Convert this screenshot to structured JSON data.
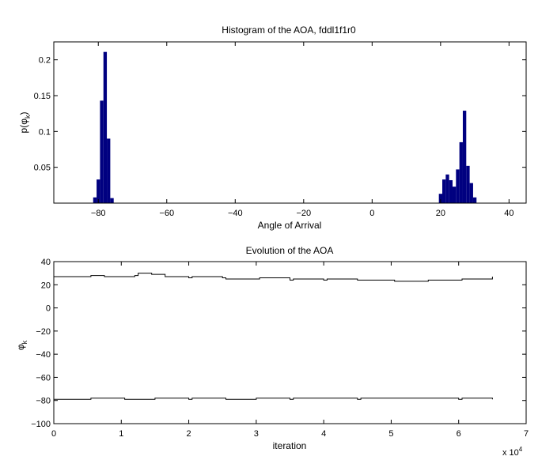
{
  "figure": {
    "background": "#ffffff"
  },
  "chart_data": [
    {
      "type": "bar",
      "title": "Histogram of the AOA, fddl1f1r0",
      "xlabel": "Angle of Arrival",
      "ylabel": "p(φ_k)",
      "ylabel_base": "p(φ",
      "ylabel_sub": "k",
      "ylabel_end": ")",
      "xlim": [
        -93,
        45
      ],
      "ylim": [
        0,
        0.225
      ],
      "xticks": [
        -80,
        -60,
        -40,
        -20,
        0,
        20,
        40
      ],
      "yticks": [
        0.05,
        0.1,
        0.15,
        0.2
      ],
      "xtick_labels": [
        "−80",
        "−60",
        "−40",
        "−20",
        "0",
        "20",
        "40"
      ],
      "ytick_labels": [
        "0.05",
        "0.1",
        "0.15",
        "0.2"
      ],
      "bar_width": 1.0,
      "bar_color": "#000080",
      "x": [
        -81,
        -80,
        -79,
        -78,
        -77,
        -76,
        20,
        21,
        22,
        23,
        24,
        25,
        26,
        27,
        28,
        29,
        30
      ],
      "values": [
        0.008,
        0.033,
        0.143,
        0.211,
        0.09,
        0.007,
        0.013,
        0.033,
        0.04,
        0.032,
        0.023,
        0.047,
        0.085,
        0.129,
        0.052,
        0.028,
        0.008
      ],
      "grid": false
    },
    {
      "type": "line",
      "title": "Evolution of the AOA",
      "xlabel": "iteration",
      "ylabel": "φ_k",
      "ylabel_base": "φ",
      "ylabel_sub": "k",
      "xlim": [
        0,
        7
      ],
      "ylim": [
        -100,
        40
      ],
      "xticks": [
        0,
        1,
        2,
        3,
        4,
        5,
        6,
        7
      ],
      "yticks": [
        -100,
        -80,
        -60,
        -40,
        -20,
        0,
        20,
        40
      ],
      "xtick_labels": [
        "0",
        "1",
        "2",
        "3",
        "4",
        "5",
        "6",
        "7"
      ],
      "ytick_labels": [
        "−100",
        "−80",
        "−60",
        "−40",
        "−20",
        "0",
        "20",
        "40"
      ],
      "x_multiplier": "x 10",
      "x_multiplier_exp": "4",
      "line_color": "#000000",
      "series": [
        {
          "x": [
            0,
            0.5,
            0.55,
            0.7,
            0.75,
            1.2,
            1.25,
            1.4,
            1.45,
            1.6,
            1.65,
            2.0,
            2.05,
            2.5,
            2.55,
            3.0,
            3.05,
            3.5,
            3.55,
            4.0,
            4.05,
            4.5,
            4.55,
            5.0,
            5.05,
            5.5,
            5.55,
            6.0,
            6.05,
            6.5
          ],
          "values": [
            27,
            27,
            28,
            28,
            27,
            28,
            30,
            30,
            29,
            29,
            27,
            26,
            27,
            26,
            25,
            25,
            26,
            24,
            25,
            24,
            25,
            24,
            24,
            24,
            23,
            23,
            24,
            24,
            25,
            27
          ]
        },
        {
          "x": [
            0,
            0.5,
            0.55,
            1.0,
            1.05,
            1.5,
            1.55,
            2.0,
            2.05,
            2.5,
            2.55,
            3.0,
            3.05,
            3.5,
            3.55,
            4.0,
            4.05,
            4.5,
            4.55,
            5.0,
            5.05,
            5.5,
            5.55,
            6.0,
            6.05,
            6.5
          ],
          "values": [
            -79,
            -79,
            -78,
            -78,
            -79,
            -78,
            -78,
            -79,
            -78,
            -78,
            -79,
            -78,
            -78,
            -79,
            -78,
            -78,
            -78,
            -79,
            -78,
            -78,
            -78,
            -78,
            -78,
            -79,
            -78,
            -79
          ]
        }
      ],
      "grid": false
    }
  ]
}
